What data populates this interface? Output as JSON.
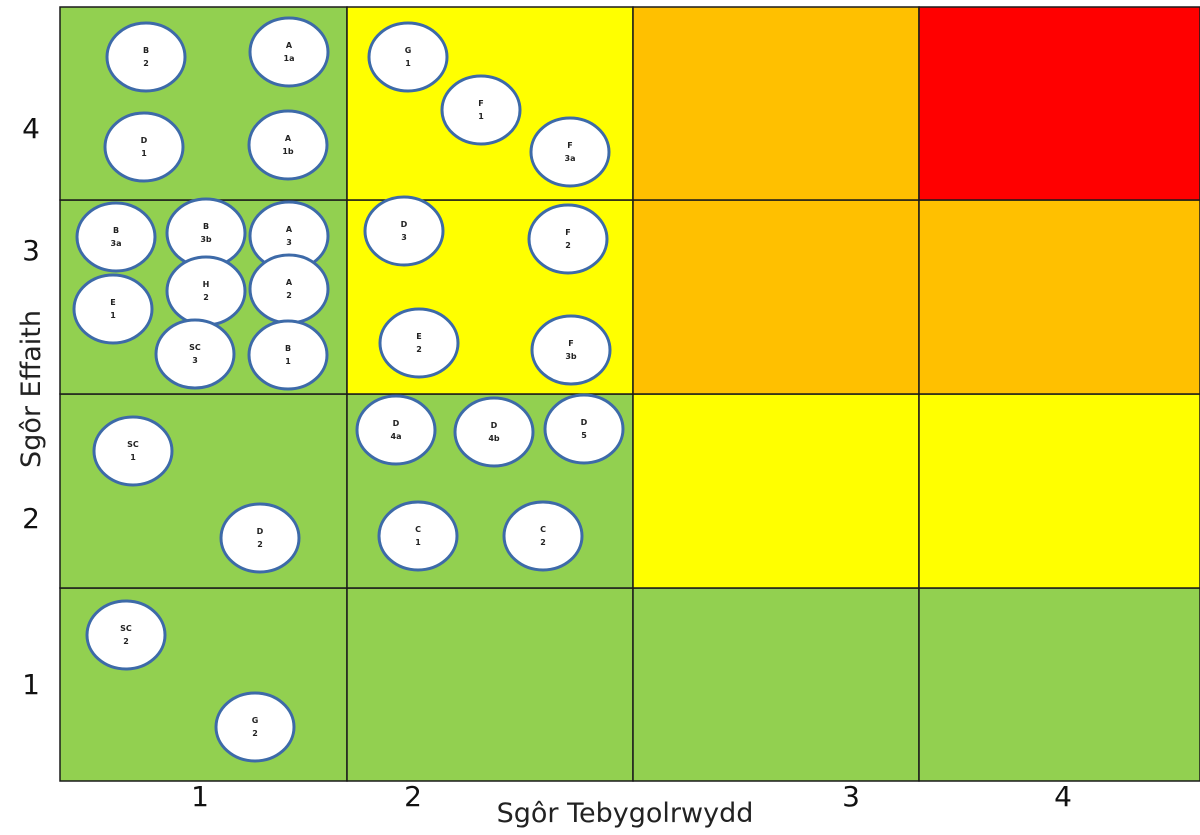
{
  "chart_data": {
    "type": "heatmap",
    "title": "",
    "xlabel": "Sgôr Tebygolrwydd",
    "ylabel": "Sgôr Effaith",
    "x_ticks": [
      "1",
      "2",
      "3",
      "4"
    ],
    "y_ticks": [
      "1",
      "2",
      "3",
      "4"
    ],
    "cell_colors": [
      [
        "#92d050",
        "#92d050",
        "#92d050",
        "#92d050"
      ],
      [
        "#92d050",
        "#92d050",
        "#ffff00",
        "#ffff00"
      ],
      [
        "#92d050",
        "#ffff00",
        "#ffc000",
        "#ffc000"
      ],
      [
        "#92d050",
        "#ffff00",
        "#ffc000",
        "#ff0000"
      ]
    ],
    "bubbles": [
      {
        "line1": "B",
        "line2": "2",
        "x": 1,
        "y": 4
      },
      {
        "line1": "A",
        "line2": "1a",
        "x": 1,
        "y": 4
      },
      {
        "line1": "D",
        "line2": "1",
        "x": 1,
        "y": 4
      },
      {
        "line1": "A",
        "line2": "1b",
        "x": 1,
        "y": 4
      },
      {
        "line1": "G",
        "line2": "1",
        "x": 2,
        "y": 4
      },
      {
        "line1": "F",
        "line2": "1",
        "x": 2,
        "y": 4
      },
      {
        "line1": "F",
        "line2": "3a",
        "x": 2,
        "y": 4
      },
      {
        "line1": "B",
        "line2": "3a",
        "x": 1,
        "y": 3
      },
      {
        "line1": "B",
        "line2": "3b",
        "x": 1,
        "y": 3
      },
      {
        "line1": "A",
        "line2": "3",
        "x": 1,
        "y": 3
      },
      {
        "line1": "H",
        "line2": "2",
        "x": 1,
        "y": 3
      },
      {
        "line1": "A",
        "line2": "2",
        "x": 1,
        "y": 3
      },
      {
        "line1": "E",
        "line2": "1",
        "x": 1,
        "y": 3
      },
      {
        "line1": "SC",
        "line2": "3",
        "x": 1,
        "y": 3
      },
      {
        "line1": "B",
        "line2": "1",
        "x": 1,
        "y": 3
      },
      {
        "line1": "D",
        "line2": "3",
        "x": 2,
        "y": 3
      },
      {
        "line1": "F",
        "line2": "2",
        "x": 2,
        "y": 3
      },
      {
        "line1": "E",
        "line2": "2",
        "x": 2,
        "y": 3
      },
      {
        "line1": "F",
        "line2": "3b",
        "x": 2,
        "y": 3
      },
      {
        "line1": "SC",
        "line2": "1",
        "x": 1,
        "y": 2
      },
      {
        "line1": "D",
        "line2": "2",
        "x": 1,
        "y": 2
      },
      {
        "line1": "D",
        "line2": "4a",
        "x": 2,
        "y": 2
      },
      {
        "line1": "D",
        "line2": "4b",
        "x": 2,
        "y": 2
      },
      {
        "line1": "D",
        "line2": "5",
        "x": 2,
        "y": 2
      },
      {
        "line1": "C",
        "line2": "1",
        "x": 2,
        "y": 2
      },
      {
        "line1": "C",
        "line2": "2",
        "x": 2,
        "y": 2
      },
      {
        "line1": "SC",
        "line2": "2",
        "x": 1,
        "y": 1
      },
      {
        "line1": "G",
        "line2": "2",
        "x": 1,
        "y": 1
      }
    ]
  }
}
